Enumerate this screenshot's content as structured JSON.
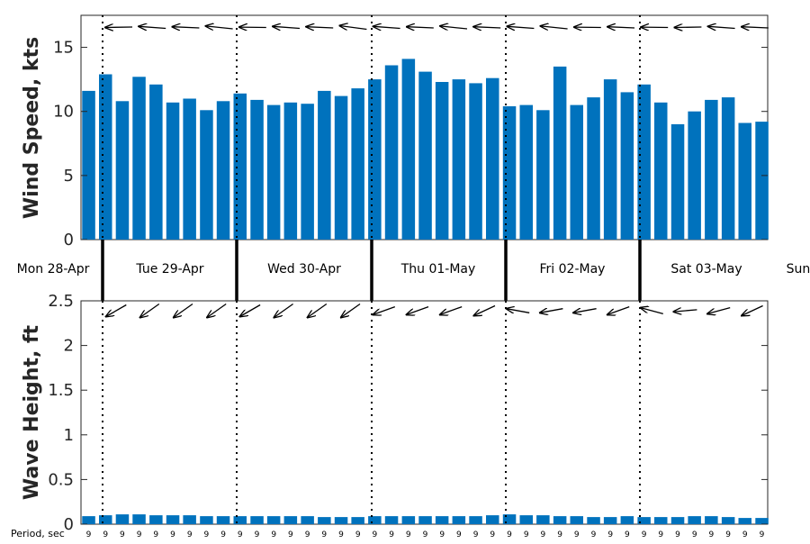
{
  "chart_data": [
    {
      "type": "bar",
      "ylabel": "Wind Speed, kts",
      "ylim": [
        0,
        17.5
      ],
      "yticks": [
        0,
        5,
        10,
        15
      ],
      "values": [
        11.6,
        12.9,
        10.8,
        12.7,
        12.1,
        10.7,
        11.0,
        10.1,
        10.8,
        11.4,
        10.9,
        10.5,
        10.7,
        10.6,
        11.6,
        11.2,
        11.8,
        12.5,
        13.6,
        14.1,
        13.1,
        12.3,
        12.5,
        12.2,
        12.6,
        10.4,
        10.5,
        10.1,
        13.5,
        10.5,
        11.1,
        12.5,
        11.5,
        12.1,
        10.7,
        9.0,
        10.0,
        10.9,
        11.1,
        9.1,
        9.2
      ],
      "direction_arrows": "wind direction arrows above bars",
      "bar_color": "#0072bd",
      "grid": false
    },
    {
      "type": "bar",
      "ylabel": "Wave Height, ft",
      "ylim": [
        0,
        2.5
      ],
      "yticks": [
        "0",
        "0.5",
        "1",
        "1.5",
        "2",
        "2.5"
      ],
      "values": [
        0.09,
        0.1,
        0.11,
        0.11,
        0.1,
        0.1,
        0.1,
        0.09,
        0.09,
        0.09,
        0.09,
        0.09,
        0.09,
        0.09,
        0.08,
        0.08,
        0.08,
        0.09,
        0.09,
        0.09,
        0.09,
        0.09,
        0.09,
        0.09,
        0.1,
        0.11,
        0.1,
        0.1,
        0.09,
        0.09,
        0.08,
        0.08,
        0.09,
        0.08,
        0.08,
        0.08,
        0.09,
        0.09,
        0.08,
        0.07,
        0.07
      ],
      "periods_label": "Period, sec",
      "periods": [
        "9",
        "9",
        "9",
        "9",
        "9",
        "9",
        "9",
        "9",
        "9",
        "9",
        "9",
        "9",
        "9",
        "9",
        "9",
        "9",
        "9",
        "9",
        "9",
        "9",
        "9",
        "9",
        "9",
        "9",
        "9",
        "9",
        "9",
        "9",
        "9",
        "9",
        "9",
        "9",
        "9",
        "9",
        "9",
        "9",
        "9",
        "9",
        "9",
        "9",
        "9"
      ],
      "bar_color": "#0072bd",
      "grid": false
    }
  ],
  "days": [
    "Mon 28-Apr",
    "Tue 29-Apr",
    "Wed 30-Apr",
    "Thu 01-May",
    "Fri 02-May",
    "Sat 03-May",
    "Sun"
  ]
}
